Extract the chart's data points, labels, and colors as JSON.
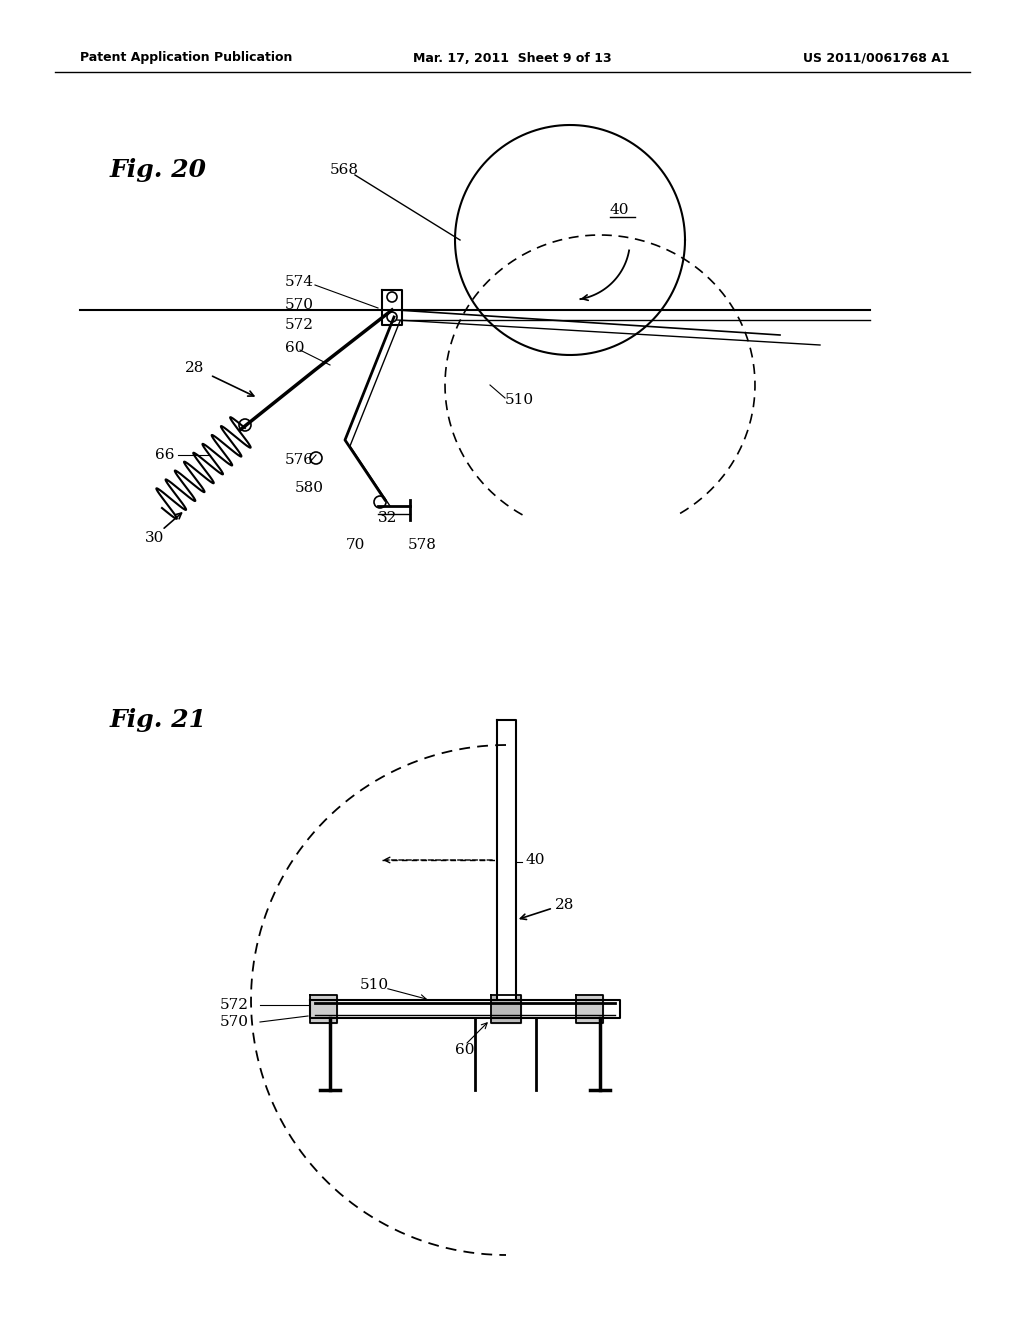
{
  "background_color": "#ffffff",
  "header_left": "Patent Application Publication",
  "header_center": "Mar. 17, 2011  Sheet 9 of 13",
  "header_right": "US 2011/0061768 A1",
  "fig20_label": "Fig. 20",
  "fig21_label": "Fig. 21"
}
